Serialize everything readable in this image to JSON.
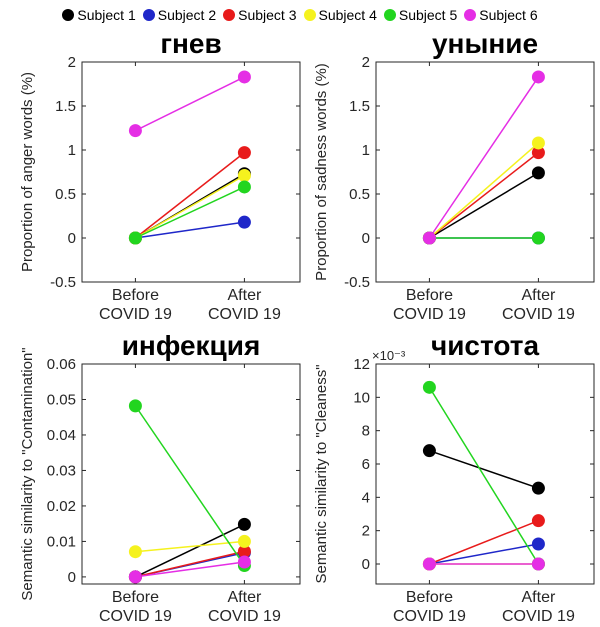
{
  "legend": [
    {
      "name": "Subject 1",
      "color": "#000000"
    },
    {
      "name": "Subject 2",
      "color": "#1f27c9"
    },
    {
      "name": "Subject 3",
      "color": "#e81b1b"
    },
    {
      "name": "Subject 4",
      "color": "#f5f21e"
    },
    {
      "name": "Subject 5",
      "color": "#22d51f"
    },
    {
      "name": "Subject 6",
      "color": "#e52ee5"
    }
  ],
  "chart_data": [
    {
      "type": "line",
      "title": "гнев",
      "ylabel": "Proportion of anger words  (%)",
      "categories": [
        "Before\nCOVID 19",
        "After\nCOVID 19"
      ],
      "ylim": [
        -0.5,
        2
      ],
      "yticks": [
        -0.5,
        0,
        0.5,
        1,
        1.5,
        2
      ],
      "ytick_labels": [
        "-0.5",
        "0",
        "0.5",
        "1",
        "1.5",
        "2"
      ],
      "exponent_label": "",
      "series": [
        {
          "name": "Subject 1",
          "values": [
            0.0,
            0.73
          ]
        },
        {
          "name": "Subject 2",
          "values": [
            0.0,
            0.18
          ]
        },
        {
          "name": "Subject 3",
          "values": [
            0.0,
            0.97
          ]
        },
        {
          "name": "Subject 4",
          "values": [
            0.0,
            0.71
          ]
        },
        {
          "name": "Subject 5",
          "values": [
            0.0,
            0.58
          ]
        },
        {
          "name": "Subject 6",
          "values": [
            1.22,
            1.83
          ]
        }
      ]
    },
    {
      "type": "line",
      "title": "уныние",
      "ylabel": "Proportion of sadness words (%)",
      "categories": [
        "Before\nCOVID 19",
        "After\nCOVID 19"
      ],
      "ylim": [
        -0.5,
        2
      ],
      "yticks": [
        -0.5,
        0,
        0.5,
        1,
        1.5,
        2
      ],
      "ytick_labels": [
        "-0.5",
        "0",
        "0.5",
        "1",
        "1.5",
        "2"
      ],
      "exponent_label": "",
      "series": [
        {
          "name": "Subject 1",
          "values": [
            0.0,
            0.74
          ]
        },
        {
          "name": "Subject 2",
          "values": [
            0.0,
            0.0
          ]
        },
        {
          "name": "Subject 3",
          "values": [
            0.0,
            0.97
          ]
        },
        {
          "name": "Subject 4",
          "values": [
            0.0,
            1.08
          ]
        },
        {
          "name": "Subject 5",
          "values": [
            0.0,
            0.0
          ]
        },
        {
          "name": "Subject 6",
          "values": [
            0.0,
            1.83
          ]
        }
      ]
    },
    {
      "type": "line",
      "title": "инфекция",
      "ylabel": "Semantic similarity to \"Contamination\"",
      "categories": [
        "Before\nCOVID 19",
        "After\nCOVID 19"
      ],
      "ylim": [
        -0.002,
        0.06
      ],
      "yticks": [
        0,
        0.01,
        0.02,
        0.03,
        0.04,
        0.05,
        0.06
      ],
      "ytick_labels": [
        "0",
        "0.01",
        "0.02",
        "0.03",
        "0.04",
        "0.05",
        "0.06"
      ],
      "exponent_label": "",
      "series": [
        {
          "name": "Subject 1",
          "values": [
            0.0,
            0.0148
          ]
        },
        {
          "name": "Subject 2",
          "values": [
            0.0,
            0.0068
          ]
        },
        {
          "name": "Subject 3",
          "values": [
            0.0,
            0.0072
          ]
        },
        {
          "name": "Subject 4",
          "values": [
            0.0071,
            0.01
          ]
        },
        {
          "name": "Subject 5",
          "values": [
            0.0482,
            0.0032
          ]
        },
        {
          "name": "Subject 6",
          "values": [
            0.0,
            0.0042
          ]
        }
      ]
    },
    {
      "type": "line",
      "title": "чистота",
      "ylabel": "Semantic similarity to \"Cleaness\"",
      "categories": [
        "Before\nCOVID 19",
        "After\nCOVID 19"
      ],
      "ylim": [
        -1.2,
        12
      ],
      "yticks": [
        0,
        2,
        4,
        6,
        8,
        10,
        12
      ],
      "ytick_labels": [
        "0",
        "2",
        "4",
        "6",
        "8",
        "10",
        "12"
      ],
      "exponent_label": "×10⁻³",
      "series": [
        {
          "name": "Subject 1",
          "values": [
            6.8,
            4.55
          ]
        },
        {
          "name": "Subject 2",
          "values": [
            0.0,
            1.2
          ]
        },
        {
          "name": "Subject 3",
          "values": [
            0.0,
            2.6
          ]
        },
        {
          "name": "Subject 4",
          "values": [
            0.0,
            0.0
          ]
        },
        {
          "name": "Subject 5",
          "values": [
            10.6,
            0.0
          ]
        },
        {
          "name": "Subject 6",
          "values": [
            0.0,
            0.0
          ]
        }
      ]
    }
  ]
}
